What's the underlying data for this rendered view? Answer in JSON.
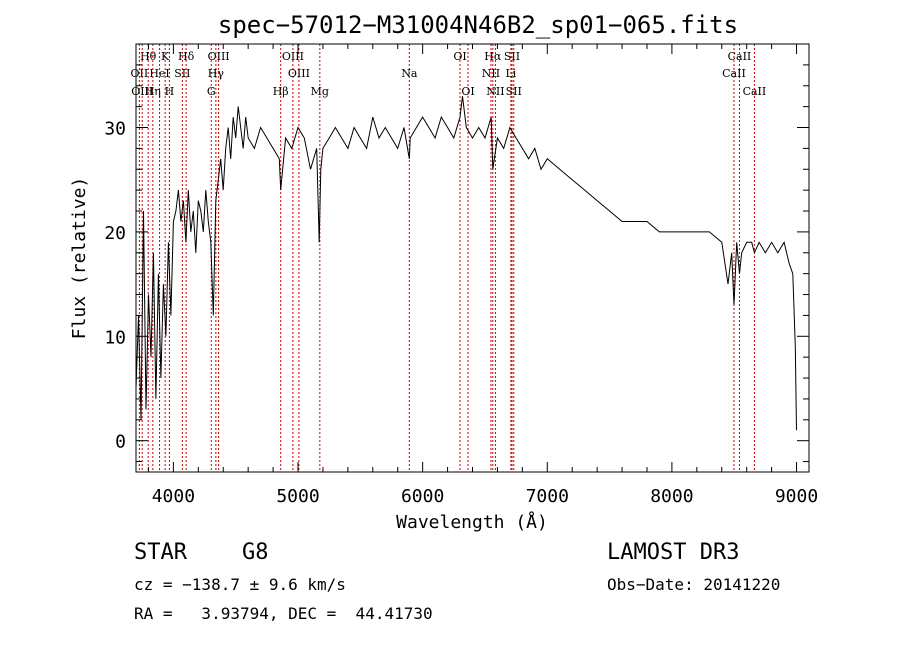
{
  "chart_data": {
    "type": "line",
    "title": "spec−57012−M31004N46B2_sp01−065.fits",
    "xlabel": "Wavelength (Å)",
    "ylabel": "Flux (relative)",
    "xlim": [
      3700,
      9100
    ],
    "ylim": [
      -3,
      38
    ],
    "xticks": [
      4000,
      5000,
      6000,
      7000,
      8000,
      9000
    ],
    "yticks": [
      0,
      10,
      20,
      30
    ],
    "series": [
      {
        "color": "#000000",
        "x": [
          3700,
          3720,
          3740,
          3760,
          3780,
          3800,
          3820,
          3840,
          3860,
          3880,
          3900,
          3920,
          3940,
          3960,
          3980,
          4000,
          4020,
          4040,
          4060,
          4080,
          4100,
          4120,
          4140,
          4160,
          4180,
          4200,
          4220,
          4240,
          4260,
          4280,
          4300,
          4320,
          4340,
          4360,
          4380,
          4400,
          4420,
          4440,
          4460,
          4480,
          4500,
          4520,
          4540,
          4560,
          4580,
          4600,
          4650,
          4700,
          4750,
          4800,
          4850,
          4861,
          4900,
          4950,
          5000,
          5050,
          5100,
          5150,
          5170,
          5183,
          5200,
          5250,
          5300,
          5350,
          5400,
          5450,
          5500,
          5550,
          5600,
          5650,
          5700,
          5750,
          5800,
          5850,
          5893,
          5900,
          5950,
          6000,
          6050,
          6100,
          6150,
          6200,
          6250,
          6300,
          6320,
          6350,
          6400,
          6450,
          6500,
          6550,
          6563,
          6600,
          6650,
          6700,
          6750,
          6800,
          6850,
          6900,
          6950,
          7000,
          7100,
          7200,
          7300,
          7400,
          7500,
          7600,
          7700,
          7800,
          7900,
          8000,
          8100,
          8200,
          8300,
          8400,
          8450,
          8480,
          8498,
          8520,
          8542,
          8560,
          8600,
          8640,
          8662,
          8700,
          8750,
          8800,
          8850,
          8900,
          8940,
          8970,
          8990,
          9000
        ],
        "y": [
          5,
          12,
          2,
          22,
          3,
          14,
          8,
          18,
          4,
          16,
          6,
          15,
          10,
          19,
          12,
          21,
          22,
          24,
          21,
          23,
          19,
          24,
          20,
          22,
          18,
          23,
          22,
          20,
          24,
          21,
          19,
          12,
          23,
          25,
          27,
          24,
          28,
          30,
          27,
          31,
          29,
          32,
          30,
          28,
          31,
          29,
          28,
          30,
          29,
          28,
          27,
          24,
          29,
          28,
          30,
          29,
          26,
          28,
          19,
          26,
          28,
          29,
          30,
          29,
          28,
          30,
          29,
          28,
          31,
          29,
          30,
          29,
          28,
          30,
          27,
          29,
          30,
          31,
          30,
          29,
          31,
          30,
          29,
          31,
          33,
          30,
          29,
          30,
          29,
          31,
          26,
          29,
          28,
          30,
          29,
          28,
          27,
          28,
          26,
          27,
          26,
          25,
          24,
          23,
          22,
          21,
          21,
          21,
          20,
          20,
          20,
          20,
          20,
          19,
          15,
          18,
          13,
          19,
          16,
          18,
          19,
          19,
          18,
          19,
          18,
          19,
          18,
          19,
          17,
          16,
          9,
          1
        ]
      }
    ],
    "lines": [
      {
        "name": "Hθ",
        "x": 3798,
        "row": 0
      },
      {
        "name": "K",
        "x": 3934,
        "row": 0
      },
      {
        "name": "Hδ",
        "x": 4102,
        "row": 0
      },
      {
        "name": "OIII",
        "x": 4363,
        "row": 0
      },
      {
        "name": "OIII",
        "x": 4959,
        "row": 0
      },
      {
        "name": "OI",
        "x": 6300,
        "row": 0
      },
      {
        "name": "Hα",
        "x": 6563,
        "row": 0
      },
      {
        "name": "SII",
        "x": 6717,
        "row": 0
      },
      {
        "name": "CaII",
        "x": 8542,
        "row": 0
      },
      {
        "name": "OII",
        "x": 3727,
        "row": 1
      },
      {
        "name": "HeI",
        "x": 3889,
        "row": 1
      },
      {
        "name": "SII",
        "x": 4072,
        "row": 1
      },
      {
        "name": "Hγ",
        "x": 4341,
        "row": 1
      },
      {
        "name": "OIII",
        "x": 5007,
        "row": 1
      },
      {
        "name": "Na",
        "x": 5893,
        "row": 1
      },
      {
        "name": "NII",
        "x": 6548,
        "row": 1
      },
      {
        "name": "Li",
        "x": 6708,
        "row": 1
      },
      {
        "name": "CaII",
        "x": 8498,
        "row": 1
      },
      {
        "name": "OIII",
        "x": 3750,
        "row": 2
      },
      {
        "name": "Hη",
        "x": 3835,
        "row": 2
      },
      {
        "name": "H",
        "x": 3968,
        "row": 2
      },
      {
        "name": "G",
        "x": 4304,
        "row": 2
      },
      {
        "name": "Hβ",
        "x": 4861,
        "row": 2
      },
      {
        "name": "Mg",
        "x": 5175,
        "row": 2
      },
      {
        "name": "OI",
        "x": 6364,
        "row": 2
      },
      {
        "name": "NII",
        "x": 6584,
        "row": 2
      },
      {
        "name": "SII",
        "x": 6731,
        "row": 2
      },
      {
        "name": "CaII",
        "x": 8662,
        "row": 2
      }
    ],
    "colors": {
      "spectrum": "#000000",
      "lines": "#cc0000",
      "axes": "#000000"
    }
  },
  "info": {
    "object_class": "STAR",
    "subclass": "G8",
    "survey": "LAMOST DR3",
    "cz": "cz = −138.7 ± 9.6 km/s",
    "obs_date": "Obs−Date: 20141220",
    "radec": "RA =   3.93794, DEC =  44.41730"
  }
}
